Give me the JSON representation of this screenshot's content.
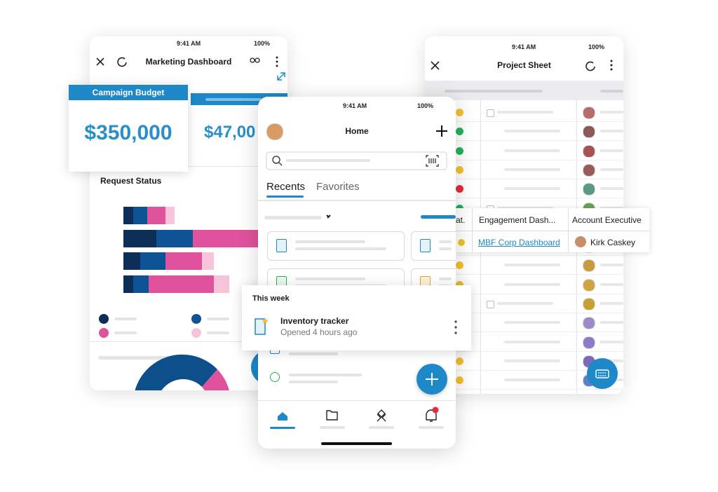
{
  "marketing_dashboard": {
    "status_time": "9:41 AM",
    "battery": "100%",
    "title": "Marketing Dashboard",
    "campaign_budget": {
      "label": "Campaign Budget",
      "value": "$350,000"
    },
    "second_value": "$47,00",
    "section_title": "Request Status"
  },
  "home": {
    "status_time": "9:41 AM",
    "battery": "100%",
    "title": "Home",
    "tabs": [
      "Recents",
      "Favorites"
    ],
    "this_week": {
      "heading": "This week",
      "item_title": "Inventory tracker",
      "item_subtitle": "Opened 4 hours ago"
    }
  },
  "project_sheet": {
    "status_time": "9:41 AM",
    "battery": "100%",
    "title": "Project Sheet",
    "popup": {
      "columns": [
        "at.",
        "Engagement Dash...",
        "Account Executive"
      ],
      "row": [
        "MBF Corp Dashboard",
        "Kirk Caskey"
      ]
    }
  }
}
